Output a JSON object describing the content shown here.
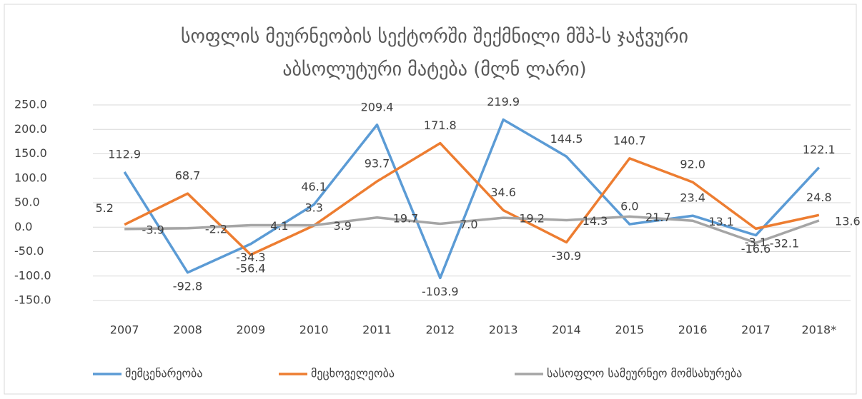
{
  "chart_data": {
    "type": "line",
    "title": [
      "სოფლის მეურნეობის სექტორში შექმნილი მშპ-ს ჯაჭვური",
      "აბსოლუტური მატება  (მლნ ლარი)"
    ],
    "categories": [
      "2007",
      "2008",
      "2009",
      "2010",
      "2011",
      "2012",
      "2013",
      "2014",
      "2015",
      "2016",
      "2017",
      "2018*"
    ],
    "series": [
      {
        "name": "მემცენარეობა",
        "color": "#5b9bd5",
        "label_color": "#4472c4",
        "values": [
          112.9,
          -92.8,
          -34.3,
          46.1,
          209.4,
          -103.9,
          219.9,
          144.5,
          6.0,
          23.4,
          -16.6,
          122.1
        ],
        "value_labels": [
          "112.9",
          "-92.8",
          "-34.3",
          "46.1",
          "209.4",
          "-103.9",
          "219.9",
          "144.5",
          "6.0",
          "23.4",
          "-16.6",
          "122.1"
        ]
      },
      {
        "name": "მეცხოველეობა",
        "color": "#ed7d31",
        "label_color": "#ed7d31",
        "values": [
          5.2,
          68.7,
          -56.4,
          3.3,
          93.7,
          171.8,
          34.6,
          -30.9,
          140.7,
          92.0,
          -3.1,
          24.8
        ],
        "value_labels": [
          "5.2",
          "68.7",
          "-56.4",
          "3.3",
          "93.7",
          "171.8",
          "34.6",
          "-30.9",
          "140.7",
          "92.0",
          "-3.1",
          "24.8"
        ]
      },
      {
        "name": "სასოფლო სამეურნეო მომსახურება",
        "color": "#a5a5a5",
        "label_color": "#000000",
        "values": [
          -3.9,
          -2.2,
          4.1,
          3.9,
          19.7,
          7.0,
          19.2,
          14.3,
          21.7,
          13.1,
          -32.1,
          13.6
        ],
        "value_labels": [
          "-3.9",
          "-2.2",
          "4.1",
          "3.9",
          "19.7",
          "7.0",
          "19.2",
          "14.3",
          "21.7",
          "13.1",
          "-32.1",
          "13.6"
        ]
      }
    ],
    "ylim": [
      -150,
      250
    ],
    "yticks": [
      {
        "value": -150,
        "label": "-150.0"
      },
      {
        "value": -100,
        "label": "-100.0"
      },
      {
        "value": -50,
        "label": "-50.0"
      },
      {
        "value": 0,
        "label": "0.0"
      },
      {
        "value": 50,
        "label": "50.0"
      },
      {
        "value": 100,
        "label": "100.0"
      },
      {
        "value": 150,
        "label": "150.0"
      },
      {
        "value": 200,
        "label": "200.0"
      },
      {
        "value": 250,
        "label": "250.0"
      }
    ],
    "grid": true,
    "legend": "bottom"
  }
}
